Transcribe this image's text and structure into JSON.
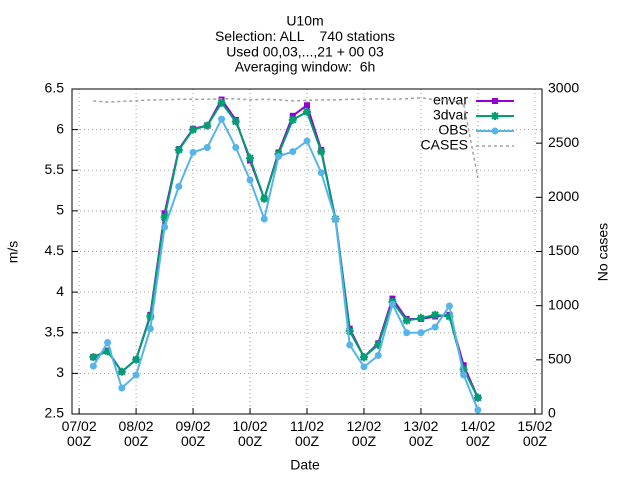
{
  "chart_data": {
    "type": "line",
    "title": [
      "U10m",
      "Selection: ALL    740 stations",
      "Used 00,03,...,21 + 00 03",
      "Averaging window:  6h"
    ],
    "xlabel": "Date",
    "ylabel": "m/s",
    "y2label": "No cases",
    "x": [
      "07/02 06Z",
      "07/02 12Z",
      "07/02 18Z",
      "08/02 00Z",
      "08/02 06Z",
      "08/02 12Z",
      "08/02 18Z",
      "09/02 00Z",
      "09/02 06Z",
      "09/02 12Z",
      "09/02 18Z",
      "10/02 00Z",
      "10/02 06Z",
      "10/02 12Z",
      "10/02 18Z",
      "11/02 00Z",
      "11/02 06Z",
      "11/02 12Z",
      "11/02 18Z",
      "12/02 00Z",
      "12/02 06Z",
      "12/02 12Z",
      "12/02 18Z",
      "13/02 00Z",
      "13/02 06Z",
      "13/02 12Z",
      "13/02 18Z",
      "14/02 00Z"
    ],
    "series": [
      {
        "name": "envar",
        "color": "#9400d3",
        "marker": "square",
        "values": [
          3.2,
          3.28,
          3.02,
          3.17,
          3.72,
          4.97,
          5.76,
          6.01,
          6.05,
          6.37,
          6.12,
          5.62,
          5.15,
          5.72,
          6.17,
          6.3,
          5.75,
          4.9,
          3.55,
          3.2,
          3.37,
          3.92,
          3.67,
          3.67,
          3.7,
          3.72,
          3.1,
          2.7
        ]
      },
      {
        "name": "3dvar",
        "color": "#009e73",
        "marker": "star",
        "values": [
          3.2,
          3.27,
          3.02,
          3.17,
          3.7,
          4.92,
          5.75,
          6.0,
          6.05,
          6.33,
          6.1,
          5.65,
          5.15,
          5.7,
          6.12,
          6.22,
          5.73,
          4.9,
          3.52,
          3.2,
          3.35,
          3.88,
          3.65,
          3.68,
          3.72,
          3.7,
          3.05,
          2.7
        ]
      },
      {
        "name": "OBS",
        "color": "#56b4e9",
        "marker": "circle",
        "values": [
          3.09,
          3.38,
          2.82,
          2.98,
          3.55,
          4.8,
          5.3,
          5.72,
          5.78,
          6.13,
          5.78,
          5.38,
          4.9,
          5.67,
          5.73,
          5.86,
          5.47,
          4.9,
          3.35,
          3.08,
          3.22,
          3.85,
          3.5,
          3.5,
          3.57,
          3.83,
          2.98,
          2.55
        ]
      },
      {
        "name": "CASES",
        "color": "#a0a0a0",
        "dashed": true,
        "axis": "y2",
        "values": [
          2890,
          2880,
          2885,
          2890,
          2900,
          2900,
          2905,
          2905,
          2905,
          2910,
          2910,
          2900,
          2905,
          2900,
          2890,
          2895,
          2900,
          2900,
          2905,
          2905,
          2910,
          2905,
          2910,
          2920,
          2900,
          2900,
          2860,
          2180
        ]
      }
    ],
    "xlim": [
      "06/02 21Z",
      "15/02 03Z"
    ],
    "xticks": [
      {
        "value": "07/02 00Z",
        "label": "07/02\n00Z"
      },
      {
        "value": "08/02 00Z",
        "label": "08/02\n00Z"
      },
      {
        "value": "09/02 00Z",
        "label": "09/02\n00Z"
      },
      {
        "value": "10/02 00Z",
        "label": "10/02\n00Z"
      },
      {
        "value": "11/02 00Z",
        "label": "11/02\n00Z"
      },
      {
        "value": "12/02 00Z",
        "label": "12/02\n00Z"
      },
      {
        "value": "13/02 00Z",
        "label": "13/02\n00Z"
      },
      {
        "value": "14/02 00Z",
        "label": "14/02\n00Z"
      },
      {
        "value": "15/02 00Z",
        "label": "15/02\n00Z"
      }
    ],
    "ylim": [
      2.5,
      6.5
    ],
    "yticks": [
      2.5,
      3,
      3.5,
      4,
      4.5,
      5,
      5.5,
      6,
      6.5
    ],
    "y2lim": [
      0,
      3000
    ],
    "y2ticks": [
      0,
      500,
      1000,
      1500,
      2000,
      2500,
      3000
    ],
    "grid": true,
    "legend": "top-right"
  }
}
